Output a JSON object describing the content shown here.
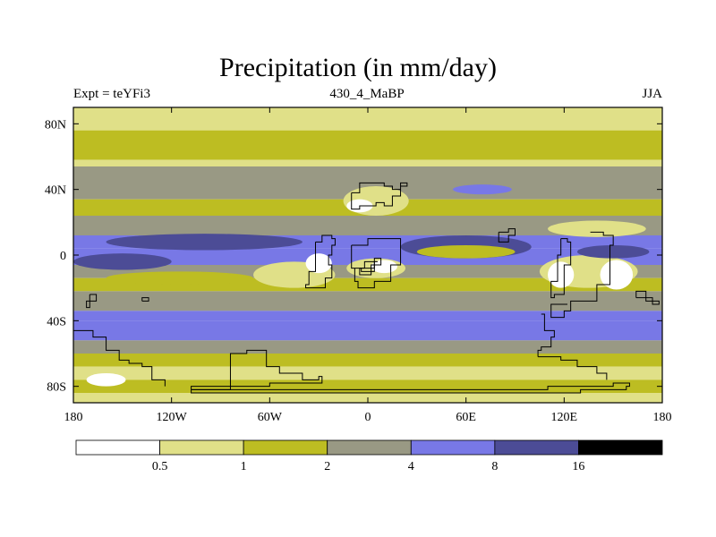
{
  "chart_data": {
    "type": "heatmap",
    "title": "Precipitation (in mm/day)",
    "subtitle_left": "Expt = teYFi3",
    "subtitle_center": "430_4_MaBP",
    "subtitle_right": "JJA",
    "units": "mm/day",
    "xlim": [
      -180,
      180
    ],
    "ylim": [
      -90,
      90
    ],
    "x_ticks": [
      {
        "value": -180,
        "label": "180"
      },
      {
        "value": -120,
        "label": "120W"
      },
      {
        "value": -60,
        "label": "60W"
      },
      {
        "value": 0,
        "label": "0"
      },
      {
        "value": 60,
        "label": "60E"
      },
      {
        "value": 120,
        "label": "120E"
      },
      {
        "value": 180,
        "label": "180"
      }
    ],
    "y_ticks": [
      {
        "value": 80,
        "label": "80N"
      },
      {
        "value": 40,
        "label": "40N"
      },
      {
        "value": 0,
        "label": "0"
      },
      {
        "value": -40,
        "label": "40S"
      },
      {
        "value": -80,
        "label": "80S"
      }
    ],
    "colorbar": {
      "levels": [
        "0.5",
        "1",
        "2",
        "4",
        "8",
        "16"
      ],
      "colors": [
        "#ffffff",
        "#e0e088",
        "#bdbd22",
        "#999984",
        "#7878e6",
        "#4c4c96",
        "#000000"
      ]
    },
    "bands": [
      {
        "lat": [
          76,
          90
        ],
        "level": 1
      },
      {
        "lat": [
          72,
          76
        ],
        "level": 2
      },
      {
        "lat": [
          58,
          72
        ],
        "level": 2
      },
      {
        "lat": [
          54,
          58
        ],
        "level": 1
      },
      {
        "lat": [
          42,
          54
        ],
        "level": 3
      },
      {
        "lat": [
          34,
          42
        ],
        "level": 3
      },
      {
        "lat": [
          24,
          34
        ],
        "level": 2
      },
      {
        "lat": [
          12,
          24
        ],
        "level": 3
      },
      {
        "lat": [
          4,
          12
        ],
        "level": 4
      },
      {
        "lat": [
          -6,
          4
        ],
        "level": 4
      },
      {
        "lat": [
          -14,
          -6
        ],
        "level": 3
      },
      {
        "lat": [
          -22,
          -14
        ],
        "level": 2
      },
      {
        "lat": [
          -34,
          -22
        ],
        "level": 3
      },
      {
        "lat": [
          -40,
          -34
        ],
        "level": 4
      },
      {
        "lat": [
          -52,
          -40
        ],
        "level": 4
      },
      {
        "lat": [
          -60,
          -52
        ],
        "level": 3
      },
      {
        "lat": [
          -68,
          -60
        ],
        "level": 2
      },
      {
        "lat": [
          -76,
          -68
        ],
        "level": 1
      },
      {
        "lat": [
          -84,
          -76
        ],
        "level": 2
      },
      {
        "lat": [
          -90,
          -84
        ],
        "level": 1
      }
    ],
    "blobs": [
      {
        "lon": -100,
        "lat": 8,
        "rlon": 60,
        "rlat": 5,
        "level": 5
      },
      {
        "lon": -150,
        "lat": -4,
        "rlon": 30,
        "rlat": 5,
        "level": 5
      },
      {
        "lon": -115,
        "lat": -14,
        "rlon": 45,
        "rlat": 4,
        "level": 2
      },
      {
        "lon": -45,
        "lat": -12,
        "rlon": 25,
        "rlat": 8,
        "level": 1
      },
      {
        "lon": -30,
        "lat": -5,
        "rlon": 8,
        "rlat": 6,
        "level": 0
      },
      {
        "lon": 5,
        "lat": -8,
        "rlon": 18,
        "rlat": 6,
        "level": 1
      },
      {
        "lon": 10,
        "lat": -7,
        "rlon": 8,
        "rlat": 4,
        "level": 0
      },
      {
        "lon": 60,
        "lat": 5,
        "rlon": 40,
        "rlat": 7,
        "level": 5
      },
      {
        "lon": 60,
        "lat": 2,
        "rlon": 30,
        "rlat": 4,
        "level": 2
      },
      {
        "lon": 5,
        "lat": 33,
        "rlon": 20,
        "rlat": 9,
        "level": 1
      },
      {
        "lon": -5,
        "lat": 30,
        "rlon": 8,
        "rlat": 4,
        "level": 0
      },
      {
        "lon": 135,
        "lat": -10,
        "rlon": 30,
        "rlat": 10,
        "level": 1
      },
      {
        "lon": 118,
        "lat": -12,
        "rlon": 8,
        "rlat": 8,
        "level": 0
      },
      {
        "lon": 152,
        "lat": -12,
        "rlon": 10,
        "rlat": 9,
        "level": 0
      },
      {
        "lon": 150,
        "lat": 2,
        "rlon": 22,
        "rlat": 4,
        "level": 5
      },
      {
        "lon": 140,
        "lat": 16,
        "rlon": 30,
        "rlat": 5,
        "level": 1
      },
      {
        "lon": 70,
        "lat": 40,
        "rlon": 18,
        "rlat": 3,
        "level": 4
      },
      {
        "lon": -160,
        "lat": -76,
        "rlon": 12,
        "rlat": 4,
        "level": 0
      }
    ],
    "coastlines": [
      [
        [
          -10,
          38
        ],
        [
          -5,
          44
        ],
        [
          5,
          44
        ],
        [
          10,
          42
        ],
        [
          15,
          40
        ],
        [
          20,
          44
        ],
        [
          24,
          42
        ],
        [
          20,
          36
        ],
        [
          15,
          30
        ],
        [
          10,
          32
        ],
        [
          5,
          30
        ],
        [
          -5,
          28
        ],
        [
          -10,
          30
        ],
        [
          -10,
          38
        ]
      ],
      [
        [
          -32,
          8
        ],
        [
          -28,
          12
        ],
        [
          -22,
          10
        ],
        [
          -20,
          6
        ],
        [
          -22,
          0
        ],
        [
          -24,
          -6
        ],
        [
          -22,
          -14
        ],
        [
          -26,
          -20
        ],
        [
          -32,
          -20
        ],
        [
          -38,
          -18
        ],
        [
          -36,
          -10
        ],
        [
          -32,
          -4
        ],
        [
          -32,
          8
        ]
      ],
      [
        [
          -10,
          6
        ],
        [
          0,
          10
        ],
        [
          15,
          10
        ],
        [
          20,
          6
        ],
        [
          20,
          -6
        ],
        [
          14,
          -16
        ],
        [
          4,
          -20
        ],
        [
          -6,
          -16
        ],
        [
          -8,
          -8
        ],
        [
          -2,
          -4
        ],
        [
          6,
          -4
        ],
        [
          4,
          -10
        ],
        [
          -4,
          -8
        ],
        [
          -10,
          0
        ],
        [
          -10,
          6
        ]
      ],
      [
        [
          -5,
          -8
        ],
        [
          4,
          -2
        ],
        [
          8,
          -6
        ],
        [
          2,
          -12
        ],
        [
          -5,
          -8
        ]
      ],
      [
        [
          118,
          10
        ],
        [
          122,
          8
        ],
        [
          124,
          -6
        ],
        [
          120,
          -24
        ],
        [
          114,
          -26
        ],
        [
          112,
          -16
        ],
        [
          116,
          0
        ],
        [
          118,
          10
        ]
      ],
      [
        [
          136,
          14
        ],
        [
          144,
          12
        ],
        [
          150,
          6
        ],
        [
          148,
          -18
        ],
        [
          140,
          -28
        ],
        [
          124,
          -34
        ],
        [
          120,
          -38
        ],
        [
          112,
          -34
        ],
        [
          112,
          -30
        ],
        [
          122,
          -30
        ]
      ],
      [
        [
          164,
          -26
        ],
        [
          174,
          -30
        ],
        [
          178,
          -28
        ],
        [
          170,
          -22
        ],
        [
          164,
          -26
        ]
      ],
      [
        [
          -180,
          -46
        ],
        [
          -168,
          -50
        ],
        [
          -160,
          -58
        ],
        [
          -152,
          -64
        ],
        [
          -146,
          -66
        ],
        [
          -138,
          -68
        ],
        [
          -132,
          -76
        ],
        [
          -124,
          -80
        ]
      ],
      [
        [
          -170,
          -24
        ],
        [
          -166,
          -28
        ],
        [
          -170,
          -32
        ],
        [
          -172,
          -28
        ],
        [
          -170,
          -24
        ]
      ],
      [
        [
          -138,
          -28
        ],
        [
          -134,
          -28
        ],
        [
          -134,
          -26
        ],
        [
          -138,
          -26
        ],
        [
          -138,
          -28
        ]
      ],
      [
        [
          -108,
          -82
        ],
        [
          -84,
          -60
        ],
        [
          -74,
          -58
        ],
        [
          -62,
          -68
        ],
        [
          -54,
          -72
        ],
        [
          -40,
          -76
        ],
        [
          -30,
          -74
        ],
        [
          -28,
          -78
        ],
        [
          -60,
          -80
        ],
        [
          -100,
          -80
        ],
        [
          -108,
          -82
        ]
      ],
      [
        [
          -108,
          -82
        ],
        [
          -40,
          -82
        ],
        [
          10,
          -82
        ],
        [
          70,
          -82
        ],
        [
          110,
          -80
        ],
        [
          150,
          -78
        ],
        [
          160,
          -80
        ],
        [
          158,
          -82
        ],
        [
          130,
          -84
        ],
        [
          60,
          -84
        ],
        [
          -20,
          -84
        ],
        [
          -108,
          -84
        ],
        [
          -108,
          -82
        ]
      ],
      [
        [
          104,
          -62
        ],
        [
          118,
          -64
        ],
        [
          128,
          -68
        ],
        [
          140,
          -72
        ],
        [
          146,
          -76
        ]
      ],
      [
        [
          106,
          -36
        ],
        [
          108,
          -46
        ],
        [
          114,
          -50
        ],
        [
          112,
          -56
        ],
        [
          106,
          -58
        ],
        [
          104,
          -62
        ]
      ],
      [
        [
          80,
          14
        ],
        [
          86,
          16
        ],
        [
          90,
          12
        ],
        [
          86,
          8
        ],
        [
          80,
          14
        ]
      ]
    ]
  }
}
